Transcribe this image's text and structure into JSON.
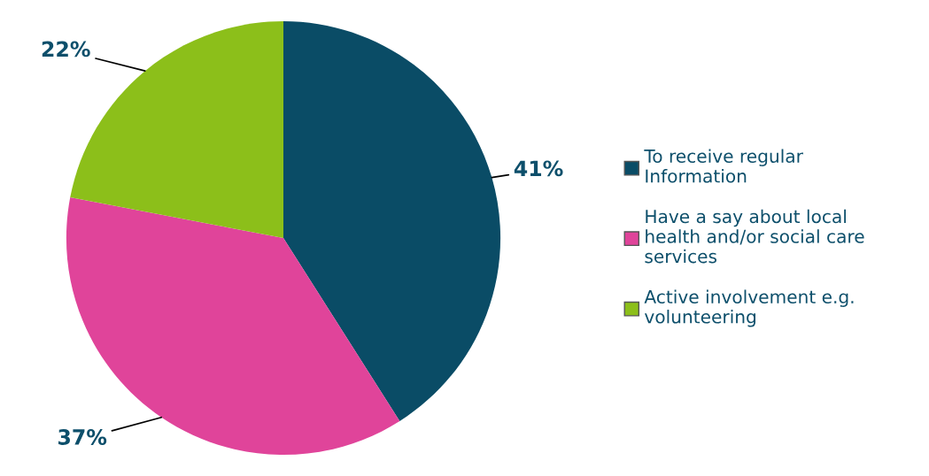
{
  "chart_data": {
    "type": "pie",
    "categories": [
      "To receive regular\nInformation",
      "Have a say about local\nhealth and/or social care\nservices",
      "Active involvement e.g.\nvolunteering"
    ],
    "values": [
      41,
      37,
      22
    ],
    "colors": [
      "#0a4c66",
      "#e0449a",
      "#8cbf1a"
    ],
    "value_labels": [
      "41%",
      "37%",
      "22%"
    ],
    "legend": "right"
  }
}
